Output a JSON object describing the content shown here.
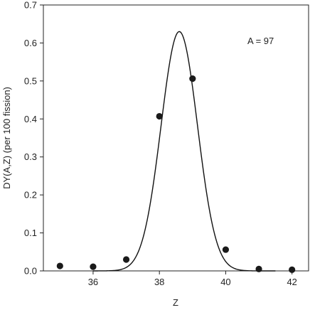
{
  "chart_data": {
    "type": "scatter",
    "xlabel": "Z",
    "ylabel": "DY(A,Z) (per 100 fission)",
    "annotation": "A = 97",
    "xlim": [
      34.5,
      42.5
    ],
    "ylim": [
      0.0,
      0.7
    ],
    "xticks": [
      36,
      38,
      40,
      42
    ],
    "yticks": [
      0.0,
      0.1,
      0.2,
      0.3,
      0.4,
      0.5,
      0.6,
      0.7
    ],
    "ytick_labels": [
      "0.0",
      "0.1",
      "0.2",
      "0.3",
      "0.4",
      "0.5",
      "0.6",
      "0.7"
    ],
    "grid": false,
    "series": [
      {
        "kind": "points",
        "x": [
          35,
          36,
          37,
          38,
          39,
          40,
          41,
          42
        ],
        "y": [
          0.013,
          0.011,
          0.03,
          0.407,
          0.506,
          0.056,
          0.005,
          0.003
        ]
      },
      {
        "kind": "gaussian-curve",
        "peak_z": 38.6,
        "peak_y": 0.63,
        "sigma": 0.55
      }
    ],
    "colors": {
      "axis": "#222222",
      "points": "#1a1a1a",
      "curve": "#111111"
    }
  }
}
